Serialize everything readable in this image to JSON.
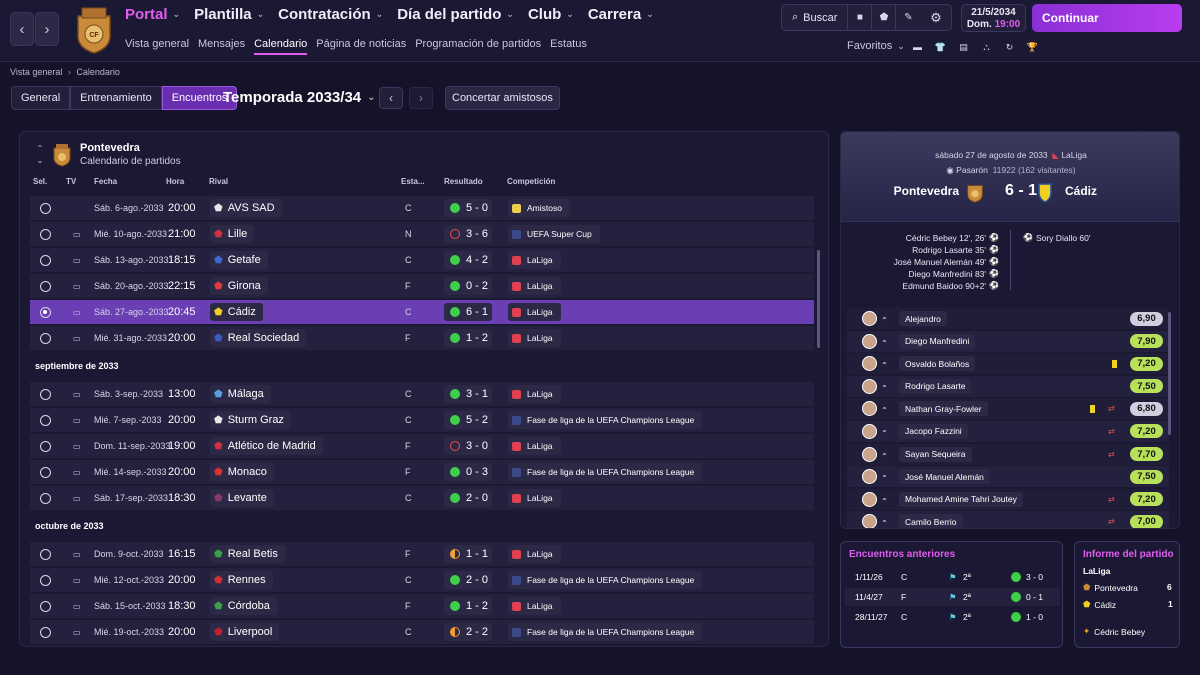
{
  "topnav": {
    "items": [
      {
        "label": "Portal",
        "active": true
      },
      {
        "label": "Plantilla",
        "active": false
      },
      {
        "label": "Contratación",
        "active": false
      },
      {
        "label": "Día del partido",
        "active": false
      },
      {
        "label": "Club",
        "active": false
      },
      {
        "label": "Carrera",
        "active": false
      }
    ],
    "subitems": [
      {
        "label": "Vista general",
        "active": false
      },
      {
        "label": "Mensajes",
        "active": false
      },
      {
        "label": "Calendario",
        "active": true
      },
      {
        "label": "Página de noticias",
        "active": false
      },
      {
        "label": "Programación de partidos",
        "active": false
      },
      {
        "label": "Estatus",
        "active": false
      }
    ],
    "search_label": "Buscar",
    "date": "21/5/2034",
    "day": "Dom.",
    "time": "19:00",
    "continue_label": "Continuar",
    "favorites_label": "Favoritos"
  },
  "breadcrumb": {
    "root": "Vista general",
    "current": "Calendario"
  },
  "tabs": [
    {
      "label": "General",
      "active": false
    },
    {
      "label": "Entrenamiento",
      "active": false
    },
    {
      "label": "Encuentros",
      "active": true
    }
  ],
  "season_label": "Temporada 2033/34",
  "friendly_button": "Concertar amistosos",
  "fixtures_panel": {
    "club": "Pontevedra",
    "subtitle": "Calendario de partidos",
    "columns": {
      "sel": "Sel.",
      "tv": "TV",
      "fecha": "Fecha",
      "hora": "Hora",
      "rival": "Rival",
      "estadio": "Esta...",
      "resultado": "Resultado",
      "competicion": "Competición"
    },
    "groups": [
      {
        "month": "",
        "matches": [
          {
            "tv": false,
            "date": "Sáb. 6-ago.-2033",
            "time": "20:00",
            "rival": "AVS SAD",
            "rival_color": "#e8e8e8",
            "venue": "C",
            "result": "5 - 0",
            "outcome": "W",
            "competition": "Amistoso",
            "comp_color": "#e8d04a",
            "selected": false
          },
          {
            "tv": true,
            "date": "Mié. 10-ago.-2033",
            "time": "21:00",
            "rival": "Lille",
            "rival_color": "#d03040",
            "venue": "N",
            "result": "3 - 6",
            "outcome": "L",
            "competition": "UEFA Super Cup",
            "comp_color": "#3a4a8a",
            "selected": false
          },
          {
            "tv": true,
            "date": "Sáb. 13-ago.-2033",
            "time": "18:15",
            "rival": "Getafe",
            "rival_color": "#3a6ad0",
            "venue": "C",
            "result": "4 - 2",
            "outcome": "W",
            "competition": "LaLiga",
            "comp_color": "#e04050",
            "selected": false
          },
          {
            "tv": true,
            "date": "Sáb. 20-ago.-2033",
            "time": "22:15",
            "rival": "Girona",
            "rival_color": "#e03a3a",
            "venue": "F",
            "result": "0 - 2",
            "outcome": "W",
            "competition": "LaLiga",
            "comp_color": "#e04050",
            "selected": false
          },
          {
            "tv": true,
            "date": "Sáb. 27-ago.-2033",
            "time": "20:45",
            "rival": "Cádiz",
            "rival_color": "#f0d020",
            "venue": "C",
            "result": "6 - 1",
            "outcome": "W",
            "competition": "LaLiga",
            "comp_color": "#e04050",
            "selected": true
          },
          {
            "tv": true,
            "date": "Mié. 31-ago.-2033",
            "time": "20:00",
            "rival": "Real Sociedad",
            "rival_color": "#3a5ac0",
            "venue": "F",
            "result": "1 - 2",
            "outcome": "W",
            "competition": "LaLiga",
            "comp_color": "#e04050",
            "selected": false
          }
        ]
      },
      {
        "month": "septiembre de 2033",
        "matches": [
          {
            "tv": true,
            "date": "Sáb. 3-sep.-2033",
            "time": "13:00",
            "rival": "Málaga",
            "rival_color": "#5aa0e0",
            "venue": "C",
            "result": "3 - 1",
            "outcome": "W",
            "competition": "LaLiga",
            "comp_color": "#e04050",
            "selected": false
          },
          {
            "tv": true,
            "date": "Mié. 7-sep.-2033",
            "time": "20:00",
            "rival": "Sturm Graz",
            "rival_color": "#e8e8e8",
            "venue": "C",
            "result": "5 - 2",
            "outcome": "W",
            "competition": "Fase de liga de la UEFA Champions League",
            "comp_color": "#3a4a8a",
            "selected": false
          },
          {
            "tv": true,
            "date": "Dom. 11-sep.-2033",
            "time": "19:00",
            "rival": "Atlético de Madrid",
            "rival_color": "#d03040",
            "venue": "F",
            "result": "3 - 0",
            "outcome": "L",
            "competition": "LaLiga",
            "comp_color": "#e04050",
            "selected": false
          },
          {
            "tv": true,
            "date": "Mié. 14-sep.-2033",
            "time": "20:00",
            "rival": "Monaco",
            "rival_color": "#e03030",
            "venue": "F",
            "result": "0 - 3",
            "outcome": "W",
            "competition": "Fase de liga de la UEFA Champions League",
            "comp_color": "#3a4a8a",
            "selected": false
          },
          {
            "tv": true,
            "date": "Sáb. 17-sep.-2033",
            "time": "18:30",
            "rival": "Levante",
            "rival_color": "#8a3a6a",
            "venue": "C",
            "result": "2 - 0",
            "outcome": "W",
            "competition": "LaLiga",
            "comp_color": "#e04050",
            "selected": false
          }
        ]
      },
      {
        "month": "octubre de 2033",
        "matches": [
          {
            "tv": true,
            "date": "Dom. 9-oct.-2033",
            "time": "16:15",
            "rival": "Real Betis",
            "rival_color": "#3aa04a",
            "venue": "F",
            "result": "1 - 1",
            "outcome": "D",
            "competition": "LaLiga",
            "comp_color": "#e04050",
            "selected": false
          },
          {
            "tv": true,
            "date": "Mié. 12-oct.-2033",
            "time": "20:00",
            "rival": "Rennes",
            "rival_color": "#d03030",
            "venue": "C",
            "result": "2 - 0",
            "outcome": "W",
            "competition": "Fase de liga de la UEFA Champions League",
            "comp_color": "#3a4a8a",
            "selected": false
          },
          {
            "tv": true,
            "date": "Sáb. 15-oct.-2033",
            "time": "18:30",
            "rival": "Córdoba",
            "rival_color": "#3aa04a",
            "venue": "F",
            "result": "1 - 2",
            "outcome": "W",
            "competition": "LaLiga",
            "comp_color": "#e04050",
            "selected": false
          },
          {
            "tv": true,
            "date": "Mié. 19-oct.-2033",
            "time": "20:00",
            "rival": "Liverpool",
            "rival_color": "#c02030",
            "venue": "C",
            "result": "2 - 2",
            "outcome": "D",
            "competition": "Fase de liga de la UEFA Champions League",
            "comp_color": "#3a4a8a",
            "selected": false
          }
        ]
      }
    ]
  },
  "match_detail": {
    "date": "sábado 27 de agosto de 2033",
    "competition": "LaLiga",
    "stadium": "Pasarón",
    "attendance": "11922",
    "visitors": "(162 visitantes)",
    "home": "Pontevedra",
    "away": "Cádiz",
    "score": "6 - 1",
    "home_scorers": [
      "Cédric Bebey 12', 26'",
      "Rodrigo Lasarte 35'",
      "José Manuel Alemán 49'",
      "Diego Manfredini 83'",
      "Edmund Baidoo 90+2'"
    ],
    "away_scorers": [
      "Sory Diallo 60'"
    ],
    "players": [
      {
        "name": "Alejandro",
        "rating": "6,90",
        "high": false,
        "card": false,
        "sub": false
      },
      {
        "name": "Diego Manfredini",
        "rating": "7,90",
        "high": true,
        "card": false,
        "sub": false
      },
      {
        "name": "Osvaldo Bolaños",
        "rating": "7,20",
        "high": true,
        "card": true,
        "sub": false
      },
      {
        "name": "Rodrigo Lasarte",
        "rating": "7,50",
        "high": true,
        "card": false,
        "sub": false
      },
      {
        "name": "Nathan Gray-Fowler",
        "rating": "6,80",
        "high": false,
        "card": true,
        "sub": true
      },
      {
        "name": "Jacopo Fazzini",
        "rating": "7,20",
        "high": true,
        "card": false,
        "sub": true
      },
      {
        "name": "Sayan Sequeira",
        "rating": "7,70",
        "high": true,
        "card": false,
        "sub": true
      },
      {
        "name": "José Manuel Alemán",
        "rating": "7,50",
        "high": true,
        "card": false,
        "sub": false
      },
      {
        "name": "Mohamed Amine Tahri Joutey",
        "rating": "7,20",
        "high": true,
        "card": false,
        "sub": true
      },
      {
        "name": "Camilo Berrio",
        "rating": "7,00",
        "high": true,
        "card": false,
        "sub": true
      }
    ]
  },
  "previous": {
    "title": "Encuentros anteriores",
    "rows": [
      {
        "date": "1/11/26",
        "venue": "C",
        "division": "2ª",
        "result": "3 - 0"
      },
      {
        "date": "11/4/27",
        "venue": "F",
        "division": "2ª",
        "result": "0 - 1"
      },
      {
        "date": "28/11/27",
        "venue": "C",
        "division": "2ª",
        "result": "1 - 0"
      }
    ]
  },
  "report": {
    "title": "Informe del partido",
    "competition": "LaLiga",
    "home": "Pontevedra",
    "home_goals": "6",
    "away": "Cádiz",
    "away_goals": "1",
    "potm": "Cédric Bebey"
  }
}
